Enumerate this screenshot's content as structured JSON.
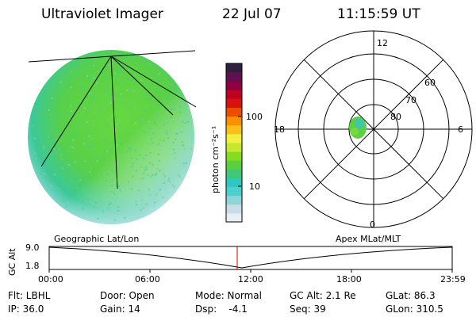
{
  "header": {
    "title": "Ultraviolet Imager",
    "date": "22 Jul 07",
    "time": "11:15:59 UT"
  },
  "colorbar": {
    "unit_label": "photon cm⁻²s⁻¹",
    "ticks": [
      "100",
      "10"
    ],
    "colors": [
      "#e8eef4",
      "#c8dde6",
      "#8fd4d8",
      "#4cd0d0",
      "#2ec8c0",
      "#40c878",
      "#58d040",
      "#88dc20",
      "#c8e830",
      "#f0f040",
      "#f8c018",
      "#f89000",
      "#e85000",
      "#d81010",
      "#c00020",
      "#900040",
      "#601050",
      "#302040"
    ]
  },
  "polar": {
    "labels": [
      "12",
      "18",
      "6",
      "0",
      "60",
      "70",
      "80"
    ]
  },
  "timeline": {
    "left_label": "Geographic Lat/Lon",
    "right_label": "Apex MLat/MLT",
    "axis_title": "GC Alt",
    "y_ticks": [
      "9.0",
      "1.8"
    ],
    "x_ticks": [
      "00:00",
      "06:00",
      "12:00",
      "18:00",
      "23:59"
    ]
  },
  "info": {
    "flt": "Flt: LBHL",
    "door": "Door: Open",
    "mode": "Mode: Normal",
    "gc_alt": "GC Alt: 2.1 Re",
    "glat": "GLat:  86.3",
    "ip": "IP: 36.0",
    "gain": "Gain: 14",
    "dsp": "Dsp:    -4.1",
    "seq": "Seq: 39",
    "glon": "GLon: 310.5"
  }
}
